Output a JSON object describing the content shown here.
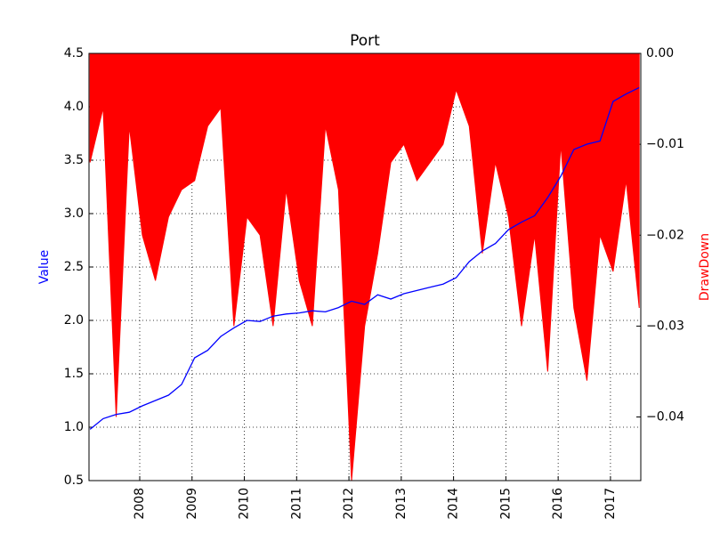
{
  "chart_data": {
    "type": "line",
    "title": "Port",
    "ylabel": "Value",
    "y2label": "DrawDown",
    "x": [
      2007.05,
      2007.3,
      2007.55,
      2007.8,
      2008.05,
      2008.3,
      2008.55,
      2008.8,
      2009.05,
      2009.3,
      2009.55,
      2009.8,
      2010.05,
      2010.3,
      2010.55,
      2010.8,
      2011.05,
      2011.3,
      2011.55,
      2011.8,
      2012.05,
      2012.3,
      2012.55,
      2012.8,
      2013.05,
      2013.3,
      2013.55,
      2013.8,
      2014.05,
      2014.3,
      2014.55,
      2014.8,
      2015.05,
      2015.3,
      2015.55,
      2015.8,
      2016.05,
      2016.3,
      2016.55,
      2016.8,
      2017.05,
      2017.3,
      2017.55
    ],
    "series": [
      {
        "name": "Value",
        "color": "#0000ff",
        "axis": "y",
        "values": [
          0.98,
          1.08,
          1.12,
          1.14,
          1.2,
          1.25,
          1.3,
          1.4,
          1.65,
          1.72,
          1.85,
          1.93,
          2.0,
          1.99,
          2.04,
          2.06,
          2.07,
          2.09,
          2.08,
          2.12,
          2.18,
          2.15,
          2.24,
          2.2,
          2.25,
          2.28,
          2.31,
          2.34,
          2.4,
          2.55,
          2.65,
          2.72,
          2.85,
          2.92,
          2.98,
          3.15,
          3.35,
          3.6,
          3.65,
          3.68,
          4.05,
          4.12,
          4.18
        ]
      },
      {
        "name": "DrawDown",
        "color": "#ff0000",
        "axis": "y2",
        "values": [
          -0.012,
          -0.006,
          -0.04,
          -0.008,
          -0.02,
          -0.025,
          -0.018,
          -0.015,
          -0.014,
          -0.008,
          -0.006,
          -0.03,
          -0.018,
          -0.02,
          -0.03,
          -0.015,
          -0.025,
          -0.03,
          -0.008,
          -0.015,
          -0.047,
          -0.03,
          -0.022,
          -0.012,
          -0.01,
          -0.014,
          -0.012,
          -0.01,
          -0.004,
          -0.008,
          -0.022,
          -0.012,
          -0.018,
          -0.03,
          -0.02,
          -0.035,
          -0.01,
          -0.028,
          -0.036,
          -0.02,
          -0.024,
          -0.014,
          -0.028
        ]
      }
    ],
    "xlim": [
      2007.03,
      2017.58
    ],
    "xticks": [
      2008,
      2009,
      2010,
      2011,
      2012,
      2013,
      2014,
      2015,
      2016,
      2017
    ],
    "ylim": [
      0.5,
      4.5
    ],
    "yticks": [
      0.5,
      {
        "value": 1,
        "label": "1.0"
      },
      1.5,
      {
        "value": 2,
        "label": "2.0"
      },
      2.5,
      {
        "value": 3,
        "label": "3.0"
      },
      3.5,
      {
        "value": 4,
        "label": "4.0"
      },
      4.5
    ],
    "y2lim": [
      -0.047,
      0
    ],
    "y2ticks": [
      {
        "value": 0,
        "label": "0.00"
      },
      {
        "value": -0.01,
        "label": "−0.01"
      },
      {
        "value": -0.02,
        "label": "−0.02"
      },
      {
        "value": -0.03,
        "label": "−0.03"
      },
      {
        "value": -0.04,
        "label": "−0.04"
      }
    ],
    "grid": true
  }
}
